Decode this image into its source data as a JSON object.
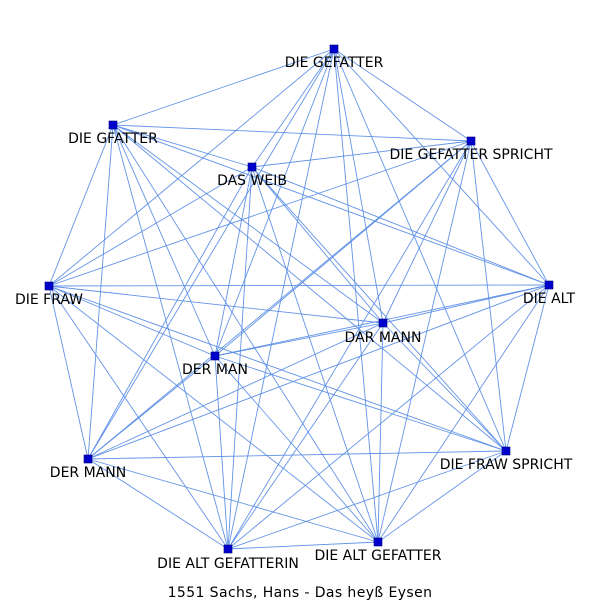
{
  "graph": {
    "caption": "1551 Sachs, Hans - Das heyß Eysen",
    "node_color": "#0000cc",
    "edge_color": "#5b8ee6",
    "nodes": [
      {
        "id": "gefatter",
        "label": "DIE GEFATTER"
      },
      {
        "id": "gfatter",
        "label": "DIE GFATTER"
      },
      {
        "id": "gefatter-spricht",
        "label": "DIE GEFATTER SPRICHT"
      },
      {
        "id": "weib",
        "label": "DAS WEIB"
      },
      {
        "id": "fraw",
        "label": "DIE FRAW"
      },
      {
        "id": "alt",
        "label": "DIE ALT"
      },
      {
        "id": "dar-mann",
        "label": "DAR MANN"
      },
      {
        "id": "der-man",
        "label": "DER MAN"
      },
      {
        "id": "der-mann",
        "label": "DER MANN"
      },
      {
        "id": "fraw-spricht",
        "label": "DIE FRAW SPRICHT"
      },
      {
        "id": "alt-gefatterin",
        "label": "DIE ALT GEFATTERIN"
      },
      {
        "id": "alt-gefatter",
        "label": "DIE ALT GEFATTER"
      }
    ],
    "edges": [
      [
        "gefatter",
        "gfatter"
      ],
      [
        "gefatter",
        "gefatter-spricht"
      ],
      [
        "gefatter",
        "weib"
      ],
      [
        "gefatter",
        "fraw"
      ],
      [
        "gefatter",
        "alt"
      ],
      [
        "gefatter",
        "dar-mann"
      ],
      [
        "gefatter",
        "der-man"
      ],
      [
        "gefatter",
        "der-mann"
      ],
      [
        "gefatter",
        "fraw-spricht"
      ],
      [
        "gefatter",
        "alt-gefatterin"
      ],
      [
        "gefatter",
        "alt-gefatter"
      ],
      [
        "gfatter",
        "gefatter-spricht"
      ],
      [
        "gfatter",
        "weib"
      ],
      [
        "gfatter",
        "fraw"
      ],
      [
        "gfatter",
        "alt"
      ],
      [
        "gfatter",
        "dar-mann"
      ],
      [
        "gfatter",
        "der-man"
      ],
      [
        "gfatter",
        "der-mann"
      ],
      [
        "gfatter",
        "fraw-spricht"
      ],
      [
        "gfatter",
        "alt-gefatterin"
      ],
      [
        "gfatter",
        "alt-gefatter"
      ],
      [
        "gefatter-spricht",
        "weib"
      ],
      [
        "gefatter-spricht",
        "fraw"
      ],
      [
        "gefatter-spricht",
        "alt"
      ],
      [
        "gefatter-spricht",
        "dar-mann"
      ],
      [
        "gefatter-spricht",
        "der-man"
      ],
      [
        "gefatter-spricht",
        "der-mann"
      ],
      [
        "gefatter-spricht",
        "fraw-spricht"
      ],
      [
        "gefatter-spricht",
        "alt-gefatterin"
      ],
      [
        "gefatter-spricht",
        "alt-gefatter"
      ],
      [
        "weib",
        "fraw"
      ],
      [
        "weib",
        "alt"
      ],
      [
        "weib",
        "dar-mann"
      ],
      [
        "weib",
        "der-man"
      ],
      [
        "weib",
        "der-mann"
      ],
      [
        "weib",
        "fraw-spricht"
      ],
      [
        "weib",
        "alt-gefatterin"
      ],
      [
        "weib",
        "alt-gefatter"
      ],
      [
        "fraw",
        "alt"
      ],
      [
        "fraw",
        "dar-mann"
      ],
      [
        "fraw",
        "der-man"
      ],
      [
        "fraw",
        "der-mann"
      ],
      [
        "fraw",
        "fraw-spricht"
      ],
      [
        "fraw",
        "alt-gefatterin"
      ],
      [
        "fraw",
        "alt-gefatter"
      ],
      [
        "alt",
        "dar-mann"
      ],
      [
        "alt",
        "der-man"
      ],
      [
        "alt",
        "der-mann"
      ],
      [
        "alt",
        "fraw-spricht"
      ],
      [
        "alt",
        "alt-gefatterin"
      ],
      [
        "alt",
        "alt-gefatter"
      ],
      [
        "dar-mann",
        "der-man"
      ],
      [
        "dar-mann",
        "der-mann"
      ],
      [
        "dar-mann",
        "fraw-spricht"
      ],
      [
        "dar-mann",
        "alt-gefatterin"
      ],
      [
        "dar-mann",
        "alt-gefatter"
      ],
      [
        "der-man",
        "der-mann"
      ],
      [
        "der-man",
        "fraw-spricht"
      ],
      [
        "der-man",
        "alt-gefatterin"
      ],
      [
        "der-man",
        "alt-gefatter"
      ],
      [
        "der-mann",
        "fraw-spricht"
      ],
      [
        "der-mann",
        "alt-gefatterin"
      ],
      [
        "der-mann",
        "alt-gefatter"
      ],
      [
        "fraw-spricht",
        "alt-gefatterin"
      ],
      [
        "fraw-spricht",
        "alt-gefatter"
      ],
      [
        "alt-gefatterin",
        "alt-gefatter"
      ]
    ]
  }
}
